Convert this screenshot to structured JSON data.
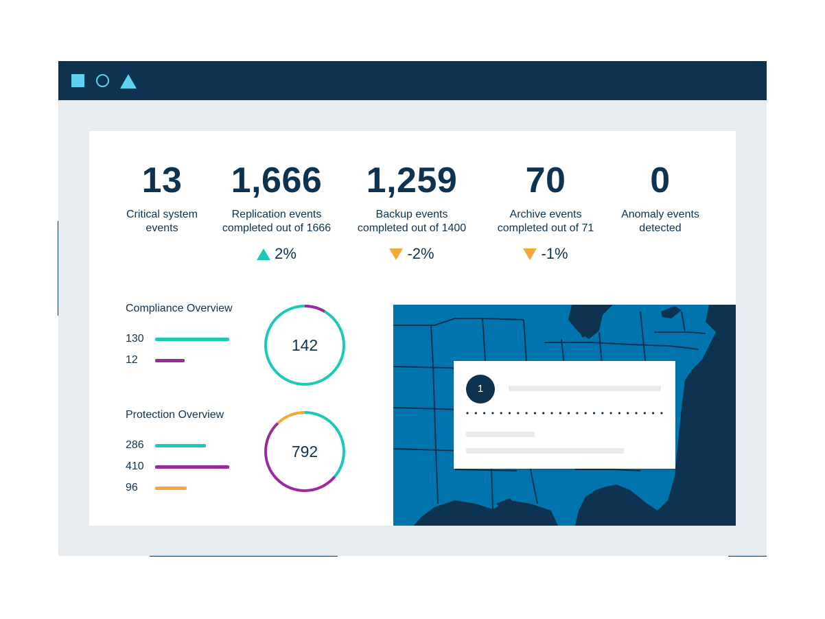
{
  "window": {
    "controls": [
      "square-icon",
      "circle-icon",
      "triangle-icon"
    ],
    "colors": {
      "frame": "#0e3350",
      "accent": "#5fd0ef",
      "background": "#e9ecef"
    }
  },
  "stats": [
    {
      "value": "13",
      "label_line1": "Critical system",
      "label_line2": "events",
      "change": ""
    },
    {
      "value": "1,666",
      "label_line1": "Replication events",
      "label_line2": "completed out of 1666",
      "change": "2%",
      "trend": "up"
    },
    {
      "value": "1,259",
      "label_line1": "Backup events",
      "label_line2": "completed out of 1400",
      "change": "-2%",
      "trend": "down"
    },
    {
      "value": "70",
      "label_line1": "Archive events",
      "label_line2": "completed out of 71",
      "change": "-1%",
      "trend": "down"
    },
    {
      "value": "0",
      "label_line1": "Anomaly events",
      "label_line2": "detected",
      "change": ""
    }
  ],
  "compliance": {
    "title": "Compliance Overview",
    "total": "142",
    "items": [
      {
        "value": "130",
        "color": "#1bc9b6"
      },
      {
        "value": "12",
        "color": "#9b2a9f"
      }
    ]
  },
  "protection": {
    "title": "Protection Overview",
    "total": "792",
    "items": [
      {
        "value": "286",
        "color": "#1bc9b6"
      },
      {
        "value": "410",
        "color": "#9b2a9f"
      },
      {
        "value": "96",
        "color": "#f3a83b"
      }
    ]
  },
  "map": {
    "colors": {
      "land": "#0075ad",
      "water": "#0e3350"
    },
    "card": {
      "badge": "1"
    }
  }
}
